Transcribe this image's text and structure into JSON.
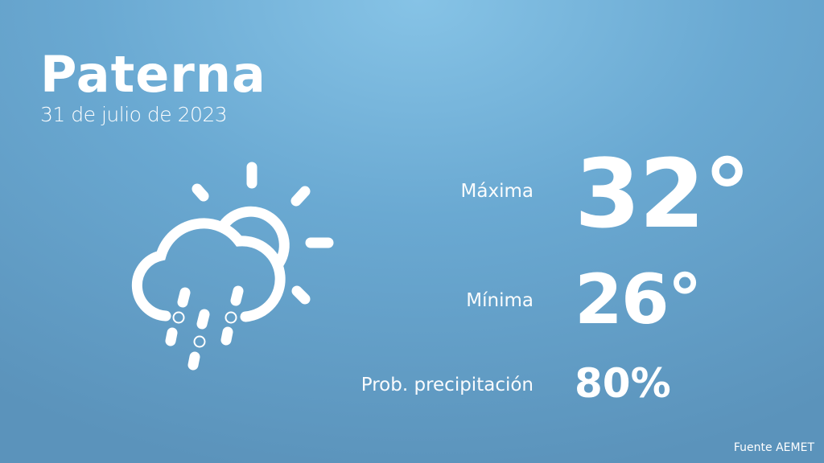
{
  "location": "Paterna",
  "date": "31 de julio de 2023",
  "icon": "sun-cloud-rain-icon",
  "rows": [
    {
      "label": "Máxima",
      "value": "32°"
    },
    {
      "label": "Mínima",
      "value": "26°"
    },
    {
      "label": "Prob. precipitación",
      "value": "80%"
    }
  ],
  "source": "Fuente AEMET",
  "colors": {
    "background_light": "#86c3e6",
    "background_dark": "#5b93bb",
    "text": "#ffffff"
  }
}
